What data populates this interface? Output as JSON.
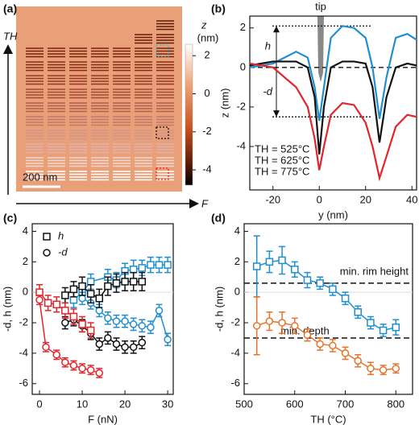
{
  "chart_data": [
    {
      "type": "image",
      "title": "(a)",
      "y_arrow_label": "TH",
      "x_arrow_label": "F",
      "scale_bar": "200 nm",
      "colorbar_label": "z",
      "colorbar_unit": "(nm)",
      "clim": [
        -4.8,
        2.6
      ],
      "cticks": [
        2,
        0,
        -2,
        -4
      ]
    },
    {
      "type": "line",
      "title": "(b)",
      "annotations": [
        "tip",
        "h",
        "-d"
      ],
      "xlabel": "y (nm)",
      "ylabel": "z (nm)",
      "xlim": [
        -30,
        42
      ],
      "ylim": [
        -6.2,
        2.6
      ],
      "xticks": [
        -20,
        0,
        20,
        40
      ],
      "yticks": [
        2,
        0,
        -2,
        -4
      ],
      "reference_lines": [
        2.1,
        0,
        -2.5
      ],
      "x": [
        -30,
        -20,
        -10,
        -5,
        -2,
        0,
        2,
        5,
        10,
        15,
        20,
        23,
        26,
        29,
        33,
        38,
        42
      ],
      "series": [
        {
          "name": "TH = 525°C",
          "color": "#1f8fd0",
          "values": [
            0,
            0.2,
            0.8,
            0.5,
            -1,
            -2.7,
            -1,
            1.5,
            2.1,
            2.0,
            1.5,
            0,
            -2.6,
            -0.5,
            1.5,
            1.7,
            1.4
          ]
        },
        {
          "name": "TH = 625°C",
          "color": "#111111",
          "values": [
            0.1,
            0.3,
            0.3,
            0,
            -1.5,
            -4.4,
            -2,
            0,
            0.3,
            0.3,
            0.2,
            -1,
            -3.8,
            -1.5,
            0,
            0.2,
            0.1
          ]
        },
        {
          "name": "TH = 775°C",
          "color": "#e3242b",
          "values": [
            0.2,
            0,
            -1,
            -2,
            -3.6,
            -5.2,
            -4,
            -2.4,
            -1.8,
            -1.9,
            -2.8,
            -4,
            -5.6,
            -4.5,
            -3,
            -2.4,
            -2.5
          ]
        }
      ]
    },
    {
      "type": "errorbar",
      "title": "(c)",
      "xlabel": "F (nN)",
      "ylabel": "-d, h (nm)",
      "xlim": [
        -1.7,
        31.3
      ],
      "ylim": [
        -6.7,
        4.5
      ],
      "xticks": [
        0,
        10,
        20,
        30
      ],
      "yticks": [
        4,
        2,
        0,
        -2,
        -4,
        -6
      ],
      "legend": [
        {
          "label": "h",
          "marker": "square"
        },
        {
          "label": "-d",
          "marker": "circle"
        }
      ],
      "series": [
        {
          "color": "#1f8fd0",
          "marker": "square",
          "x": [
            8,
            10,
            12,
            16,
            18,
            20,
            22,
            24,
            26,
            28,
            30
          ],
          "values": [
            -0.5,
            0,
            0.7,
            1.0,
            0.8,
            1.4,
            1.5,
            1.6,
            1.8,
            1.8,
            1.8
          ],
          "errors": [
            0.5,
            0.5,
            0.5,
            0.5,
            0.5,
            0.5,
            0.6,
            0.5,
            0.5,
            0.5,
            0.5
          ]
        },
        {
          "color": "#1f8fd0",
          "marker": "circle",
          "x": [
            10,
            12,
            14,
            16,
            18,
            20,
            22,
            24,
            26,
            28,
            30
          ],
          "values": [
            -0.4,
            -0.7,
            -1.2,
            -1.7,
            -1.9,
            -1.9,
            -2.1,
            -2.2,
            -2.3,
            -1.2,
            -3.1
          ],
          "errors": [
            0.4,
            0.4,
            0.4,
            0.4,
            0.4,
            0.4,
            0.4,
            0.4,
            0.4,
            0.4,
            0.4
          ]
        },
        {
          "color": "#111111",
          "marker": "square",
          "x": [
            6,
            8,
            10,
            12,
            14,
            16,
            18,
            20,
            22,
            24
          ],
          "values": [
            -0.2,
            0.2,
            0.4,
            -0.1,
            -0.4,
            0.4,
            0.6,
            0.7,
            0.7,
            0.7
          ],
          "errors": [
            0.5,
            0.5,
            0.6,
            0.6,
            0.6,
            0.6,
            0.6,
            0.6,
            0.6,
            0.6
          ]
        },
        {
          "color": "#111111",
          "marker": "circle",
          "x": [
            6,
            8,
            10,
            12,
            14,
            16,
            18,
            20,
            22,
            24
          ],
          "values": [
            -2.0,
            -1.8,
            -2.2,
            -2.7,
            -3.4,
            -3.0,
            -3.4,
            -3.6,
            -3.6,
            -3.3
          ],
          "errors": [
            0.4,
            0.4,
            0.4,
            0.4,
            0.4,
            0.4,
            0.4,
            0.4,
            0.4,
            0.4
          ]
        },
        {
          "color": "#e3242b",
          "marker": "square",
          "x": [
            0,
            2,
            4,
            6,
            8,
            10,
            12
          ],
          "values": [
            0,
            -0.7,
            -0.8,
            -1.2,
            -1.6,
            -2.1,
            -2.5
          ],
          "errors": [
            0.5,
            0.5,
            0.5,
            0.5,
            0.5,
            0.5,
            0.5
          ]
        },
        {
          "color": "#e3242b",
          "marker": "circle",
          "x": [
            0,
            1.5,
            4,
            6,
            8,
            10,
            12,
            14
          ],
          "values": [
            -0.5,
            -3.6,
            -4.1,
            -4.6,
            -4.8,
            -5.0,
            -5.1,
            -5.3
          ],
          "errors": [
            0.3,
            0.3,
            0.3,
            0.3,
            0.3,
            0.3,
            0.3,
            0.3
          ]
        }
      ]
    },
    {
      "type": "errorbar",
      "title": "(d)",
      "xlabel": "TH (°C)",
      "ylabel": "-d, h (nm)",
      "xlim": [
        500,
        833
      ],
      "ylim": [
        -6.7,
        4.5
      ],
      "xticks": [
        500,
        600,
        700,
        800
      ],
      "yticks": [
        4,
        2,
        0,
        -2,
        -4,
        -6
      ],
      "reference_lines": [
        {
          "value": 0.6,
          "label": "min. rim height"
        },
        {
          "value": -3.0,
          "label": "min. depth"
        }
      ],
      "series": [
        {
          "color": "#1f8fd0",
          "marker": "square",
          "x": [
            525,
            550,
            575,
            600,
            625,
            650,
            675,
            700,
            725,
            750,
            775,
            800
          ],
          "values": [
            1.7,
            2.0,
            2.1,
            1.5,
            0.8,
            0.6,
            0.2,
            -0.4,
            -1.3,
            -2.0,
            -2.5,
            -2.3
          ],
          "errors": [
            2.0,
            0.7,
            0.9,
            0.5,
            0.5,
            0.4,
            0.4,
            0.4,
            0.4,
            0.4,
            0.4,
            0.5
          ]
        },
        {
          "color": "#e8732a",
          "marker": "circle",
          "x": [
            525,
            550,
            575,
            600,
            625,
            650,
            675,
            700,
            725,
            750,
            775,
            800
          ],
          "values": [
            -2.2,
            -1.9,
            -2.0,
            -2.2,
            -2.8,
            -3.4,
            -3.5,
            -4.0,
            -4.5,
            -5.0,
            -5.1,
            -5.0
          ],
          "errors": [
            1.9,
            0.6,
            0.7,
            0.5,
            0.4,
            0.4,
            0.4,
            0.4,
            0.4,
            0.4,
            0.3,
            0.3
          ]
        }
      ]
    }
  ]
}
